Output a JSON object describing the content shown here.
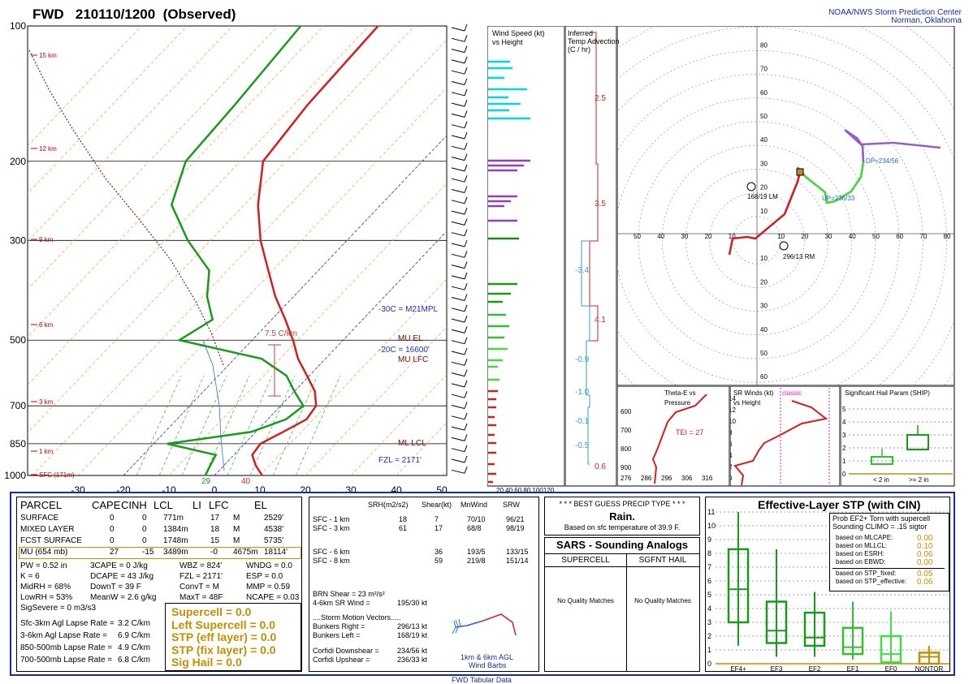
{
  "header": {
    "title": "FWD   210110/1200  (Observed)",
    "org_line1": "NOAA/NWS Storm Prediction Center",
    "org_line2": "Norman, Oklahoma"
  },
  "skewt": {
    "pressure_labels": [
      "100",
      "200",
      "300",
      "500",
      "700",
      "850",
      "1000"
    ],
    "temp_labels": [
      "-30",
      "-20",
      "-10",
      "0",
      "10",
      "20",
      "30",
      "40",
      "50"
    ],
    "height_labels": [
      "15 km",
      "12 km",
      "9 km",
      "6 km",
      "3 km",
      "1 km",
      "SFC (171m)"
    ],
    "annotations": {
      "mpl": "-30C = M21MPL",
      "mu_el": "MU  EL",
      "m20c": "-20C = 16600'",
      "mu_lfc": "MU  LFC",
      "ml_lcl": "ML  LCL",
      "fzl": "FZL = 2171'",
      "lapse": "7.5 C/km",
      "td_sfc": "29",
      "t_sfc": "40"
    }
  },
  "chart_data": [
    {
      "type": "line",
      "title": "",
      "xlabel": "",
      "ylabel": "",
      "series": [
        {
          "name": "",
          "color": "#d02020",
          "points": [
            [
              1000,
              10.5
            ],
            [
              950,
              7
            ],
            [
              900,
              4
            ],
            [
              850,
              3.5
            ],
            [
              800,
              6
            ],
            [
              750,
              8.5
            ],
            [
              700,
              7.8
            ],
            [
              650,
              4.5
            ],
            [
              600,
              -0.5
            ],
            [
              550,
              -6
            ],
            [
              500,
              -11
            ],
            [
              450,
              -17
            ],
            [
              400,
              -24
            ],
            [
              350,
              -31
            ],
            [
              300,
              -39
            ],
            [
              250,
              -47
            ],
            [
              200,
              -55
            ],
            [
              150,
              -57
            ],
            [
              100,
              -58
            ]
          ]
        },
        {
          "name": "",
          "color": "#1a9a1a",
          "points": [
            [
              1000,
              -2
            ],
            [
              950,
              -3
            ],
            [
              900,
              -4
            ],
            [
              850,
              -17
            ],
            [
              800,
              -1
            ],
            [
              750,
              4
            ],
            [
              700,
              5
            ],
            [
              650,
              0
            ],
            [
              600,
              -5
            ],
            [
              550,
              -14
            ],
            [
              500,
              -36
            ],
            [
              450,
              -33
            ],
            [
              400,
              -39
            ],
            [
              350,
              -44
            ],
            [
              300,
              -55
            ],
            [
              250,
              -66
            ],
            [
              200,
              -72
            ],
            [
              150,
              -73
            ],
            [
              100,
              -75
            ]
          ]
        }
      ]
    },
    {
      "type": "bar",
      "title": "",
      "xlabel": "",
      "ylabel": "",
      "categories": [
        "20",
        "40",
        "60",
        "80",
        "100",
        "120"
      ]
    }
  ],
  "hodo": {
    "rings": [
      "80",
      "70",
      "60",
      "50",
      "40",
      "30",
      "20",
      "10",
      "10",
      "20",
      "30",
      "40",
      "50",
      "60",
      "70",
      "80"
    ],
    "lm": "168/19 LM",
    "rm": "296/13 RM",
    "dp": "DP=234/56",
    "up": "UP=236/33"
  },
  "wind_panel": {
    "title1": "Wind Speed (kt)",
    "title2": "vs Height",
    "axis": "20 40 60 80 100120"
  },
  "adv_panel": {
    "title1": "Inferred",
    "title2": "Temp Advection",
    "title3": "(C / hr)",
    "v1": "2.5",
    "v2": "3.5",
    "v3": "-3.4",
    "v4": "4.1",
    "v5": "-0.9",
    "v6": "-1.0",
    "v7": "-0.1",
    "v8": "-0.5",
    "v9": "0.6"
  },
  "theta_panel": {
    "title1": "Theta-E vs",
    "title2": "Pressure",
    "tei": "TEI = 27",
    "p": [
      "600",
      "700",
      "800",
      "900"
    ],
    "x": [
      "276",
      "286",
      "296",
      "306",
      "316"
    ]
  },
  "srw_panel": {
    "title1": "SR Winds (kt)",
    "title2": "vs Height",
    "classic": "classic",
    "y": [
      "14",
      "12",
      "10",
      "8",
      "6",
      "4",
      "2",
      "0"
    ]
  },
  "ship_panel": {
    "title": "Significant Hail Param (SHIP)",
    "lt2": "< 2 in",
    "ge2": ">= 2 in"
  },
  "parcel": {
    "headers": [
      "PARCEL",
      "CAPE",
      "CINH",
      "LCL",
      "LI",
      "LFC",
      "EL"
    ],
    "rows": [
      [
        "SURFACE",
        "0",
        "0",
        "771m",
        "17",
        "M",
        "2529'"
      ],
      [
        "MIXED LAYER",
        "0",
        "0",
        "1384m",
        "18",
        "M",
        "4538'"
      ],
      [
        "FCST SURFACE",
        "0",
        "0",
        "1748m",
        "15",
        "M",
        "5735'"
      ],
      [
        "MU  (654 mb)",
        "27",
        "-15",
        "3489m",
        "-0",
        "4675m",
        "18114'"
      ]
    ],
    "misc": [
      [
        "PW = 0.52 in",
        "3CAPE = 0 J/kg",
        "WBZ = 824'",
        "WNDG = 0.0"
      ],
      [
        "K = 6",
        "DCAPE = 43 J/kg",
        "FZL = 2171'",
        "ESP = 0.0"
      ],
      [
        "MidRH = 68%",
        "DownT = 39 F",
        "ConvT = M",
        "MMP = 0.59"
      ],
      [
        "LowRH = 53%",
        "MeanW = 2.6 g/kg",
        "MaxT = 48F",
        "NCAPE = 0.03"
      ]
    ],
    "sigsevere": "SigSevere = 0 m3/s3",
    "lapse": [
      [
        "Sfc-3km Agl Lapse Rate =",
        "3.2 C/km"
      ],
      [
        "3-6km Agl Lapse Rate =",
        "6.9 C/km"
      ],
      [
        "850-500mb Lapse Rate =",
        "4.9 C/km"
      ],
      [
        "700-500mb Lapse Rate =",
        "6.8 C/km"
      ]
    ],
    "comp": [
      "Supercell = 0.0",
      "Left Supercell = 0.0",
      "STP (eff layer) = 0.0",
      "STP (fix layer) = 0.0",
      "Sig Hail = 0.0"
    ]
  },
  "kinem": {
    "headers": [
      "SRH(m2/s2)",
      "Shear(kt)",
      "MnWind",
      "SRW"
    ],
    "rows": [
      [
        "SFC - 1 km",
        "18",
        "7",
        "70/10",
        "96/21"
      ],
      [
        "SFC - 3 km",
        "61",
        "17",
        "68/8",
        "98/19"
      ],
      [
        "SFC - 6 km",
        "",
        "36",
        "193/5",
        "133/15"
      ],
      [
        "SFC - 8 km",
        "",
        "59",
        "219/8",
        "151/14"
      ]
    ],
    "brn": "BRN Shear =  23 m²/s²",
    "srwind": "4-6km SR Wind =",
    "srwind_v": "195/30 kt",
    "smv": "....Storm Motion Vectors.....",
    "br": "Bunkers Right =",
    "br_v": "296/13 kt",
    "bl": "Bunkers Left =",
    "bl_v": "168/19 kt",
    "cd": "Corfidi Downshear =",
    "cd_v": "234/56 kt",
    "cu": "Corfidi Upshear =",
    "cu_v": "236/33 kt",
    "barbs": "1km & 6km AGL",
    "barbs2": "Wind Barbs"
  },
  "precip": {
    "title": "* * * BEST GUESS PRECIP TYPE * * *",
    "value": "Rain.",
    "note": "Based on sfc temperature of 39.9 F."
  },
  "sars": {
    "title": "SARS - Sounding Analogs",
    "col1": "SUPERCELL",
    "col2": "SGFNT HAIL",
    "nq1": "No Quality Matches",
    "nq2": "No Quality Matches"
  },
  "stp": {
    "title": "Effective-Layer STP (with CIN)",
    "prob1": "Prob EF2+ Torn with supercell",
    "prob2": "Sounding CLIMO = .15 sigtor",
    "based": [
      [
        "based on MLCAPE:",
        "0.00"
      ],
      [
        "based on MLLCL:",
        "0.10"
      ],
      [
        "based on ESRH:",
        "0.06"
      ],
      [
        "based on EBWD:",
        "0.00"
      ],
      [
        "based on STP_fixed:",
        "0.05"
      ],
      [
        "based on STP_effective:",
        "0.06"
      ]
    ],
    "cats": [
      "EF4+",
      "EF3",
      "EF2",
      "EF1",
      "EF0",
      "NONTOR"
    ],
    "y": [
      "11",
      "10",
      "9",
      "8",
      "7",
      "6",
      "5",
      "4",
      "3",
      "2",
      "1",
      "0"
    ],
    "box_stats": [
      [
        1.3,
        3,
        5.4,
        8.3,
        11
      ],
      [
        0.5,
        1.5,
        2.4,
        4.5,
        8.3
      ],
      [
        0.5,
        1.3,
        1.9,
        3.7,
        5.2
      ],
      [
        0.3,
        0.7,
        1.2,
        2.6,
        4.5
      ],
      [
        0,
        0.1,
        0.7,
        2,
        3.8
      ],
      [
        0,
        0,
        0.5,
        0.8,
        1.3
      ]
    ],
    "colors": [
      "#1a9a1a",
      "#1a9a1a",
      "#1a9a1a",
      "#30c030",
      "#40dd40",
      "#c09000"
    ]
  },
  "footer": "FWD Tabular Data"
}
